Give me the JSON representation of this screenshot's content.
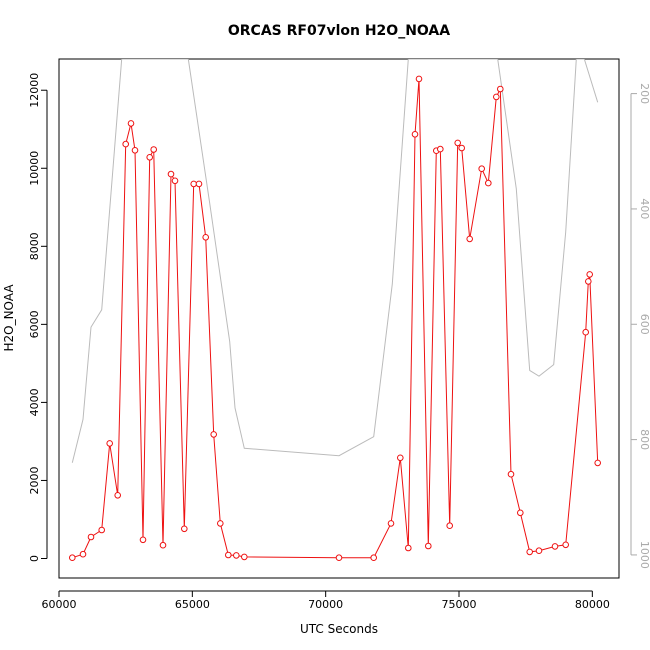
{
  "chart_data": {
    "type": "line",
    "title": "ORCAS RF07vlon H2O_NOAA",
    "xlabel": "UTC Seconds",
    "ylabel": "H2O_NOAA",
    "xlim": [
      60000,
      81000
    ],
    "ylim": [
      -500,
      12800
    ],
    "y2lim": [
      1040,
      140
    ],
    "x_ticks": [
      60000,
      65000,
      70000,
      75000,
      80000
    ],
    "y_ticks": [
      0,
      2000,
      4000,
      6000,
      8000,
      10000,
      12000
    ],
    "y2_ticks": [
      200,
      400,
      600,
      800,
      1000
    ],
    "x_tick_labels": [
      "60000",
      "65000",
      "70000",
      "75000",
      "80000"
    ],
    "y_tick_labels": [
      "0",
      "2000",
      "4000",
      "6000",
      "8000",
      "10000",
      "12000"
    ],
    "y2_tick_labels": [
      "200",
      "400",
      "600",
      "800",
      "1000"
    ],
    "grid": false,
    "colors": {
      "h2o": "#ee1111",
      "pressure": "#bbbbbb",
      "axis": "#000000",
      "axis2": "#aaaaaa"
    },
    "series": [
      {
        "key": "h2o",
        "axis": "left",
        "markers": true,
        "x": [
          60500,
          60900,
          61200,
          61600,
          61900,
          62200,
          62500,
          62700,
          62850,
          63150,
          63400,
          63550,
          63900,
          64200,
          64350,
          64700,
          65050,
          65250,
          65500,
          65800,
          66050,
          66350,
          66650,
          66950,
          70500,
          71800,
          72450,
          72800,
          73100,
          73350,
          73500,
          73850,
          74150,
          74300,
          74650,
          74950,
          75100,
          75400,
          75850,
          76100,
          76400,
          76550,
          76950,
          77300,
          77650,
          78000,
          78600,
          79000,
          79750,
          79850,
          79900,
          80200
        ],
        "y": [
          20,
          110,
          550,
          730,
          2950,
          1620,
          10620,
          11150,
          10460,
          480,
          10280,
          10480,
          340,
          9850,
          9680,
          760,
          9600,
          9600,
          8230,
          3180,
          900,
          90,
          80,
          40,
          20,
          20,
          900,
          2580,
          270,
          10870,
          12290,
          320,
          10450,
          10490,
          840,
          10650,
          10520,
          8190,
          9990,
          9620,
          11830,
          12030,
          2160,
          1170,
          170,
          200,
          310,
          350,
          5800,
          7100,
          7280,
          2450
        ]
      },
      {
        "key": "pressure",
        "axis": "right",
        "markers": false,
        "x": [
          60500,
          60900,
          61200,
          61600,
          62350,
          64850,
          65650,
          66400,
          66600,
          66950,
          70500,
          71800,
          72500,
          73100,
          73300,
          73600,
          73650,
          76450,
          77150,
          77650,
          78000,
          78550,
          79000,
          79400,
          79700,
          80200
        ],
        "y": [
          840,
          765,
          605,
          575,
          140,
          140,
          390,
          630,
          745,
          815,
          828,
          795,
          530,
          140,
          140,
          140,
          140,
          140,
          365,
          680,
          690,
          670,
          440,
          140,
          140,
          215
        ]
      }
    ]
  }
}
